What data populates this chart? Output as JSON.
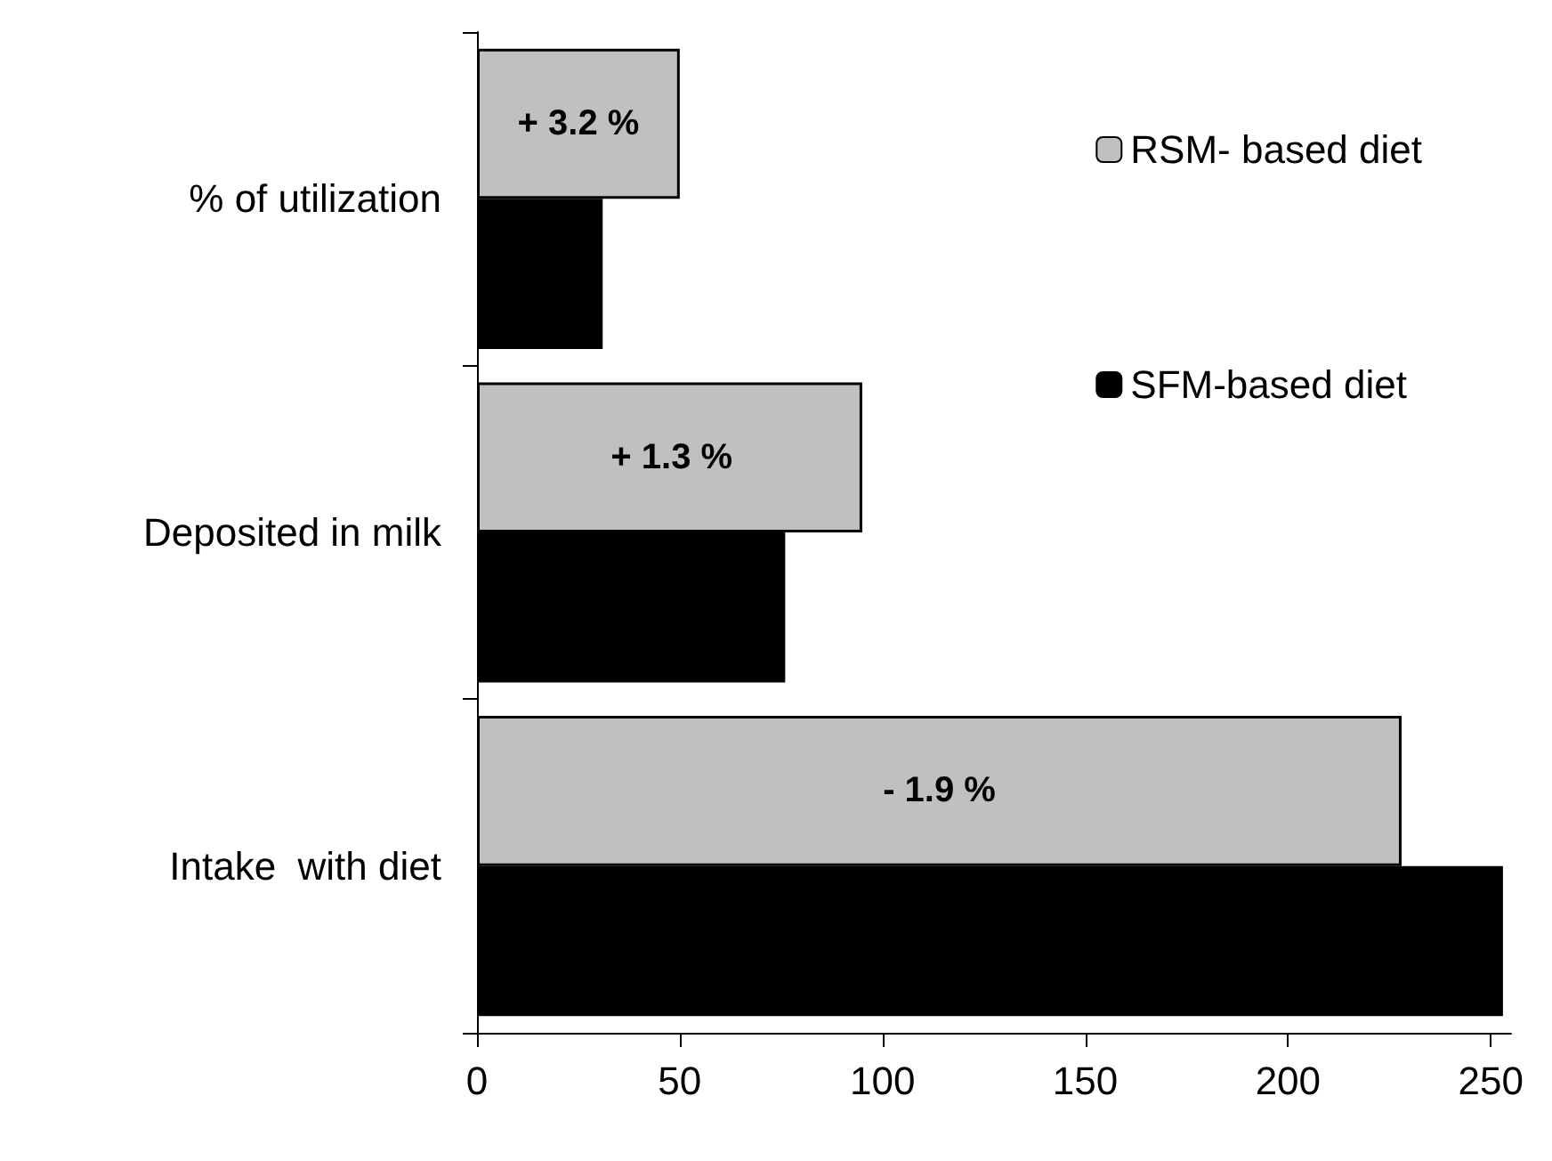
{
  "chart_data": {
    "type": "bar",
    "orientation": "horizontal",
    "categories": [
      "% of utilization",
      "Deposited in milk",
      "Intake  with diet"
    ],
    "series": [
      {
        "name": "RSM- based diet",
        "color": "#c0c0c0",
        "values": [
          50,
          95,
          228
        ]
      },
      {
        "name": "SFM-based diet",
        "color": "#000000",
        "values": [
          31,
          76,
          253
        ]
      }
    ],
    "xlim": [
      0,
      255
    ],
    "xticks": [
      0,
      50,
      100,
      150,
      200,
      250
    ],
    "grid": false,
    "legend": "right",
    "annotations": [
      {
        "text": "+ 3.2 %",
        "x": 25,
        "y": "% of utilization"
      },
      {
        "text": "+ 1.3 %",
        "x": 48,
        "y": "Deposited in milk"
      },
      {
        "text": "- 1.9 %",
        "x": 114,
        "y": "Intake  with diet"
      }
    ]
  }
}
